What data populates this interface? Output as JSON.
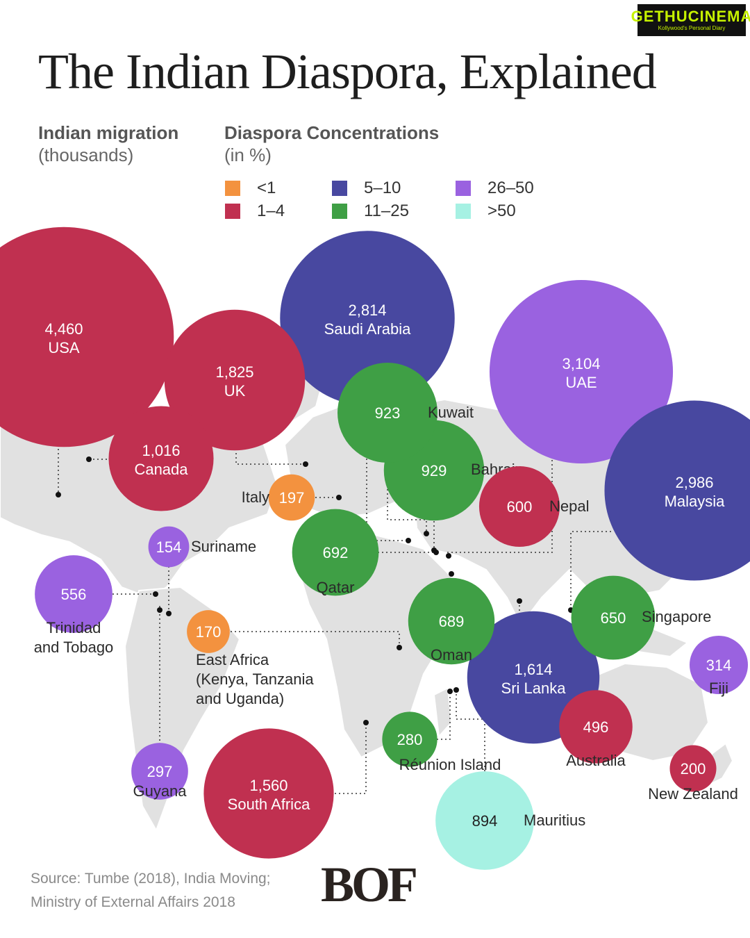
{
  "title": "The Indian Diaspora, Explained",
  "legend": {
    "size_heading": "Indian migration",
    "size_sub": "(thousands)",
    "color_heading": "Diaspora Concentrations",
    "color_sub": "(in %)",
    "items": [
      {
        "label": "<1",
        "color": "#f3923f"
      },
      {
        "label": "1–4",
        "color": "#c03050"
      },
      {
        "label": "5–10",
        "color": "#4848a0"
      },
      {
        "label": "11–25",
        "color": "#3f9f45"
      },
      {
        "label": "26–50",
        "color": "#9a62e0"
      },
      {
        "label": ">50",
        "color": "#a6f1e3"
      }
    ]
  },
  "watermark": {
    "main": "GETHUCINEMA",
    "sub": "Kollywood's Personal Diary"
  },
  "chart_data": {
    "type": "map-bubble",
    "unit": "thousands",
    "points": [
      {
        "country": "USA",
        "value": 4460,
        "value_label": "4,460",
        "group": "1–4"
      },
      {
        "country": "UAE",
        "value": 3104,
        "value_label": "3,104",
        "group": "26–50"
      },
      {
        "country": "Malaysia",
        "value": 2986,
        "value_label": "2,986",
        "group": "5–10"
      },
      {
        "country": "Saudi Arabia",
        "value": 2814,
        "value_label": "2,814",
        "group": "5–10"
      },
      {
        "country": "UK",
        "value": 1825,
        "value_label": "1,825",
        "group": "1–4"
      },
      {
        "country": "Sri Lanka",
        "value": 1614,
        "value_label": "1,614",
        "group": "5–10"
      },
      {
        "country": "South Africa",
        "value": 1560,
        "value_label": "1,560",
        "group": "1–4"
      },
      {
        "country": "Canada",
        "value": 1016,
        "value_label": "1,016",
        "group": "1–4"
      },
      {
        "country": "Bahrain",
        "value": 929,
        "value_label": "929",
        "group": "11–25"
      },
      {
        "country": "Kuwait",
        "value": 923,
        "value_label": "923",
        "group": "11–25"
      },
      {
        "country": "Mauritius",
        "value": 894,
        "value_label": "894",
        "group": ">50"
      },
      {
        "country": "Qatar",
        "value": 692,
        "value_label": "692",
        "group": "11–25"
      },
      {
        "country": "Oman",
        "value": 689,
        "value_label": "689",
        "group": "11–25"
      },
      {
        "country": "Singapore",
        "value": 650,
        "value_label": "650",
        "group": "11–25"
      },
      {
        "country": "Nepal",
        "value": 600,
        "value_label": "600",
        "group": "1–4"
      },
      {
        "country": "Trinidad and Tobago",
        "value": 556,
        "value_label": "556",
        "group": "26–50"
      },
      {
        "country": "Australia",
        "value": 496,
        "value_label": "496",
        "group": "1–4"
      },
      {
        "country": "Fiji",
        "value": 314,
        "value_label": "314",
        "group": "26–50"
      },
      {
        "country": "Guyana",
        "value": 297,
        "value_label": "297",
        "group": "26–50"
      },
      {
        "country": "Réunion Island",
        "value": 280,
        "value_label": "280",
        "group": "11–25"
      },
      {
        "country": "New Zealand",
        "value": 200,
        "value_label": "200",
        "group": "1–4"
      },
      {
        "country": "Italy",
        "value": 197,
        "value_label": "197",
        "group": "<1"
      },
      {
        "country": "East Africa (Kenya, Tanzania and Uganda)",
        "value": 170,
        "value_label": "170",
        "group": "<1"
      },
      {
        "country": "Suriname",
        "value": 154,
        "value_label": "154",
        "group": "26–50"
      }
    ]
  },
  "source": {
    "line1": "Source: Tumbe (2018), India Moving;",
    "line2": "Ministry of External Affairs 2018"
  },
  "logo_text": "BOF"
}
